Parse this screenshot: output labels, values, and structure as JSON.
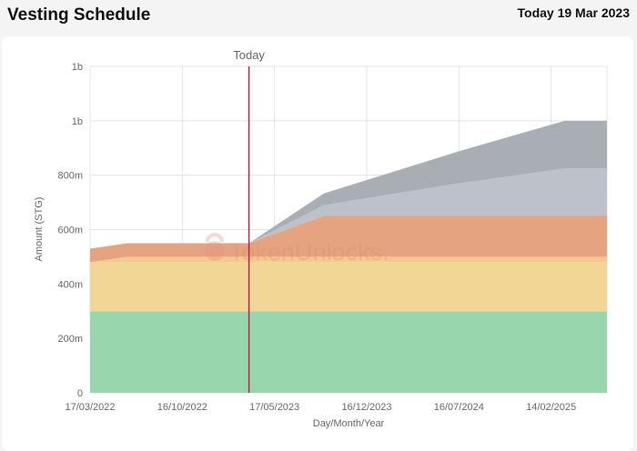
{
  "header": {
    "title": "Vesting Schedule",
    "today_label": "Today 19 Mar 2023"
  },
  "watermark": "TokenUnlocks.",
  "chart_data": {
    "type": "area",
    "stacked": true,
    "xlabel": "Day/Month/Year",
    "ylabel": "Amount (STG)",
    "ylim": [
      0,
      1200000000
    ],
    "y_ticks": [
      0,
      200000000,
      400000000,
      600000000,
      800000000,
      1000000000,
      1200000000
    ],
    "y_tick_labels": [
      "0",
      "200m",
      "400m",
      "600m",
      "800m",
      "1b",
      "1b"
    ],
    "x_range": [
      "2022-03-17",
      "2025-06-23"
    ],
    "x_ticks": [
      "2022-03-17",
      "2022-10-16",
      "2023-05-17",
      "2023-12-16",
      "2024-07-16",
      "2025-02-14"
    ],
    "x_tick_labels": [
      "17/03/2022",
      "16/10/2022",
      "17/05/2023",
      "16/12/2023",
      "16/07/2024",
      "14/02/2025"
    ],
    "grid": true,
    "marker": {
      "label": "Today",
      "date": "2023-03-19",
      "color": "#b5284a"
    },
    "x": [
      "2022-03-17",
      "2022-06-11",
      "2023-03-19",
      "2023-09-08",
      "2024-07-16",
      "2025-03-17",
      "2025-06-23"
    ],
    "series": [
      {
        "color": "#98d7ad",
        "values": [
          300000000,
          300000000,
          300000000,
          300000000,
          300000000,
          300000000,
          300000000
        ]
      },
      {
        "color": "#f1d696",
        "values": [
          180000000,
          180000000,
          180000000,
          180000000,
          180000000,
          180000000,
          180000000
        ]
      },
      {
        "color": "#f5c88e",
        "values": [
          0,
          20000000,
          20000000,
          20000000,
          20000000,
          20000000,
          20000000
        ]
      },
      {
        "color": "#e5a47f",
        "values": [
          50000000,
          50000000,
          50000000,
          150000000,
          150000000,
          150000000,
          150000000
        ]
      },
      {
        "color": "#bcc1ca",
        "values": [
          0,
          0,
          0,
          40000000,
          120000000,
          175000000,
          175000000
        ]
      },
      {
        "color": "#a9aeb5",
        "values": [
          0,
          0,
          0,
          43000000,
          118000000,
          175000000,
          175000000
        ]
      }
    ]
  }
}
